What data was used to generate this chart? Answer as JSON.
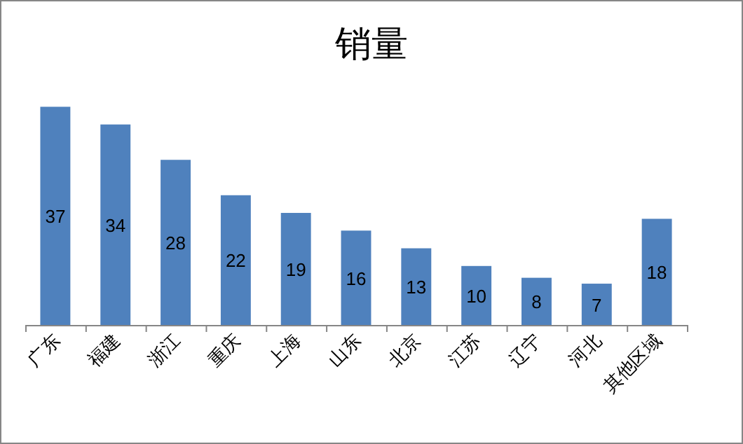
{
  "chart_data": {
    "type": "bar",
    "title": "销量",
    "categories": [
      "广东",
      "福建",
      "浙江",
      "重庆",
      "上海",
      "山东",
      "北京",
      "江苏",
      "辽宁",
      "河北",
      "其他区域"
    ],
    "values": [
      37,
      34,
      28,
      22,
      19,
      16,
      13,
      10,
      8,
      7,
      18
    ],
    "color": "#4f81bd",
    "data_labels": true
  }
}
